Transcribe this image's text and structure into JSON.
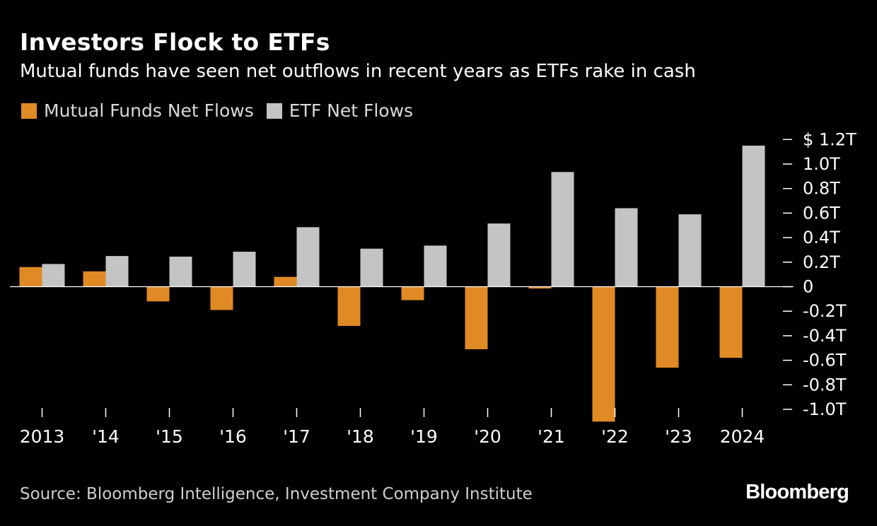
{
  "header": {
    "title": "Investors Flock to ETFs",
    "subtitle": "Mutual funds have seen net outflows in recent years as ETFs rake in cash"
  },
  "colors": {
    "background": "#000000",
    "mutual_funds": "#E08A25",
    "etf": "#C4C4C4",
    "axis": "#ffffff",
    "text": "#ffffff"
  },
  "legend": {
    "items": [
      {
        "label": "Mutual Funds Net Flows",
        "color": "#E08A25"
      },
      {
        "label": "ETF Net Flows",
        "color": "#C4C4C4"
      }
    ]
  },
  "chart_data": {
    "type": "bar",
    "title": "Investors Flock to ETFs",
    "subtitle": "Mutual funds have seen net outflows in recent years as ETFs rake in cash",
    "xlabel": "",
    "ylabel": "",
    "categories": [
      "2013",
      "'14",
      "'15",
      "'16",
      "'17",
      "'18",
      "'19",
      "'20",
      "'21",
      "'22",
      "'23",
      "2024"
    ],
    "series": [
      {
        "name": "Mutual Funds Net Flows",
        "color": "#E08A25",
        "values": [
          0.16,
          0.125,
          -0.12,
          -0.19,
          0.08,
          -0.32,
          -0.11,
          -0.51,
          -0.015,
          -1.1,
          -0.66,
          -0.58
        ]
      },
      {
        "name": "ETF Net Flows",
        "color": "#C4C4C4",
        "values": [
          0.185,
          0.25,
          0.245,
          0.285,
          0.485,
          0.31,
          0.335,
          0.515,
          0.935,
          0.64,
          0.59,
          1.15
        ]
      }
    ],
    "ylim": [
      -1.05,
      1.25
    ],
    "yticks": [
      1.2,
      1.0,
      0.8,
      0.6,
      0.4,
      0.2,
      0,
      -0.2,
      -0.4,
      -0.6,
      -0.8,
      -1.0
    ],
    "ytick_labels": [
      "$ 1.2T",
      "1.0T",
      "0.8T",
      "0.6T",
      "0.4T",
      "0.2T",
      "0",
      "-0.2T",
      "-0.4T",
      "-0.6T",
      "-0.8T",
      "-1.0T"
    ],
    "y_axis_position": "right",
    "legend_position": "top-left",
    "grid": false
  },
  "footer": {
    "source": "Source: Bloomberg Intelligence, Investment Company Institute",
    "brand": "Bloomberg"
  }
}
